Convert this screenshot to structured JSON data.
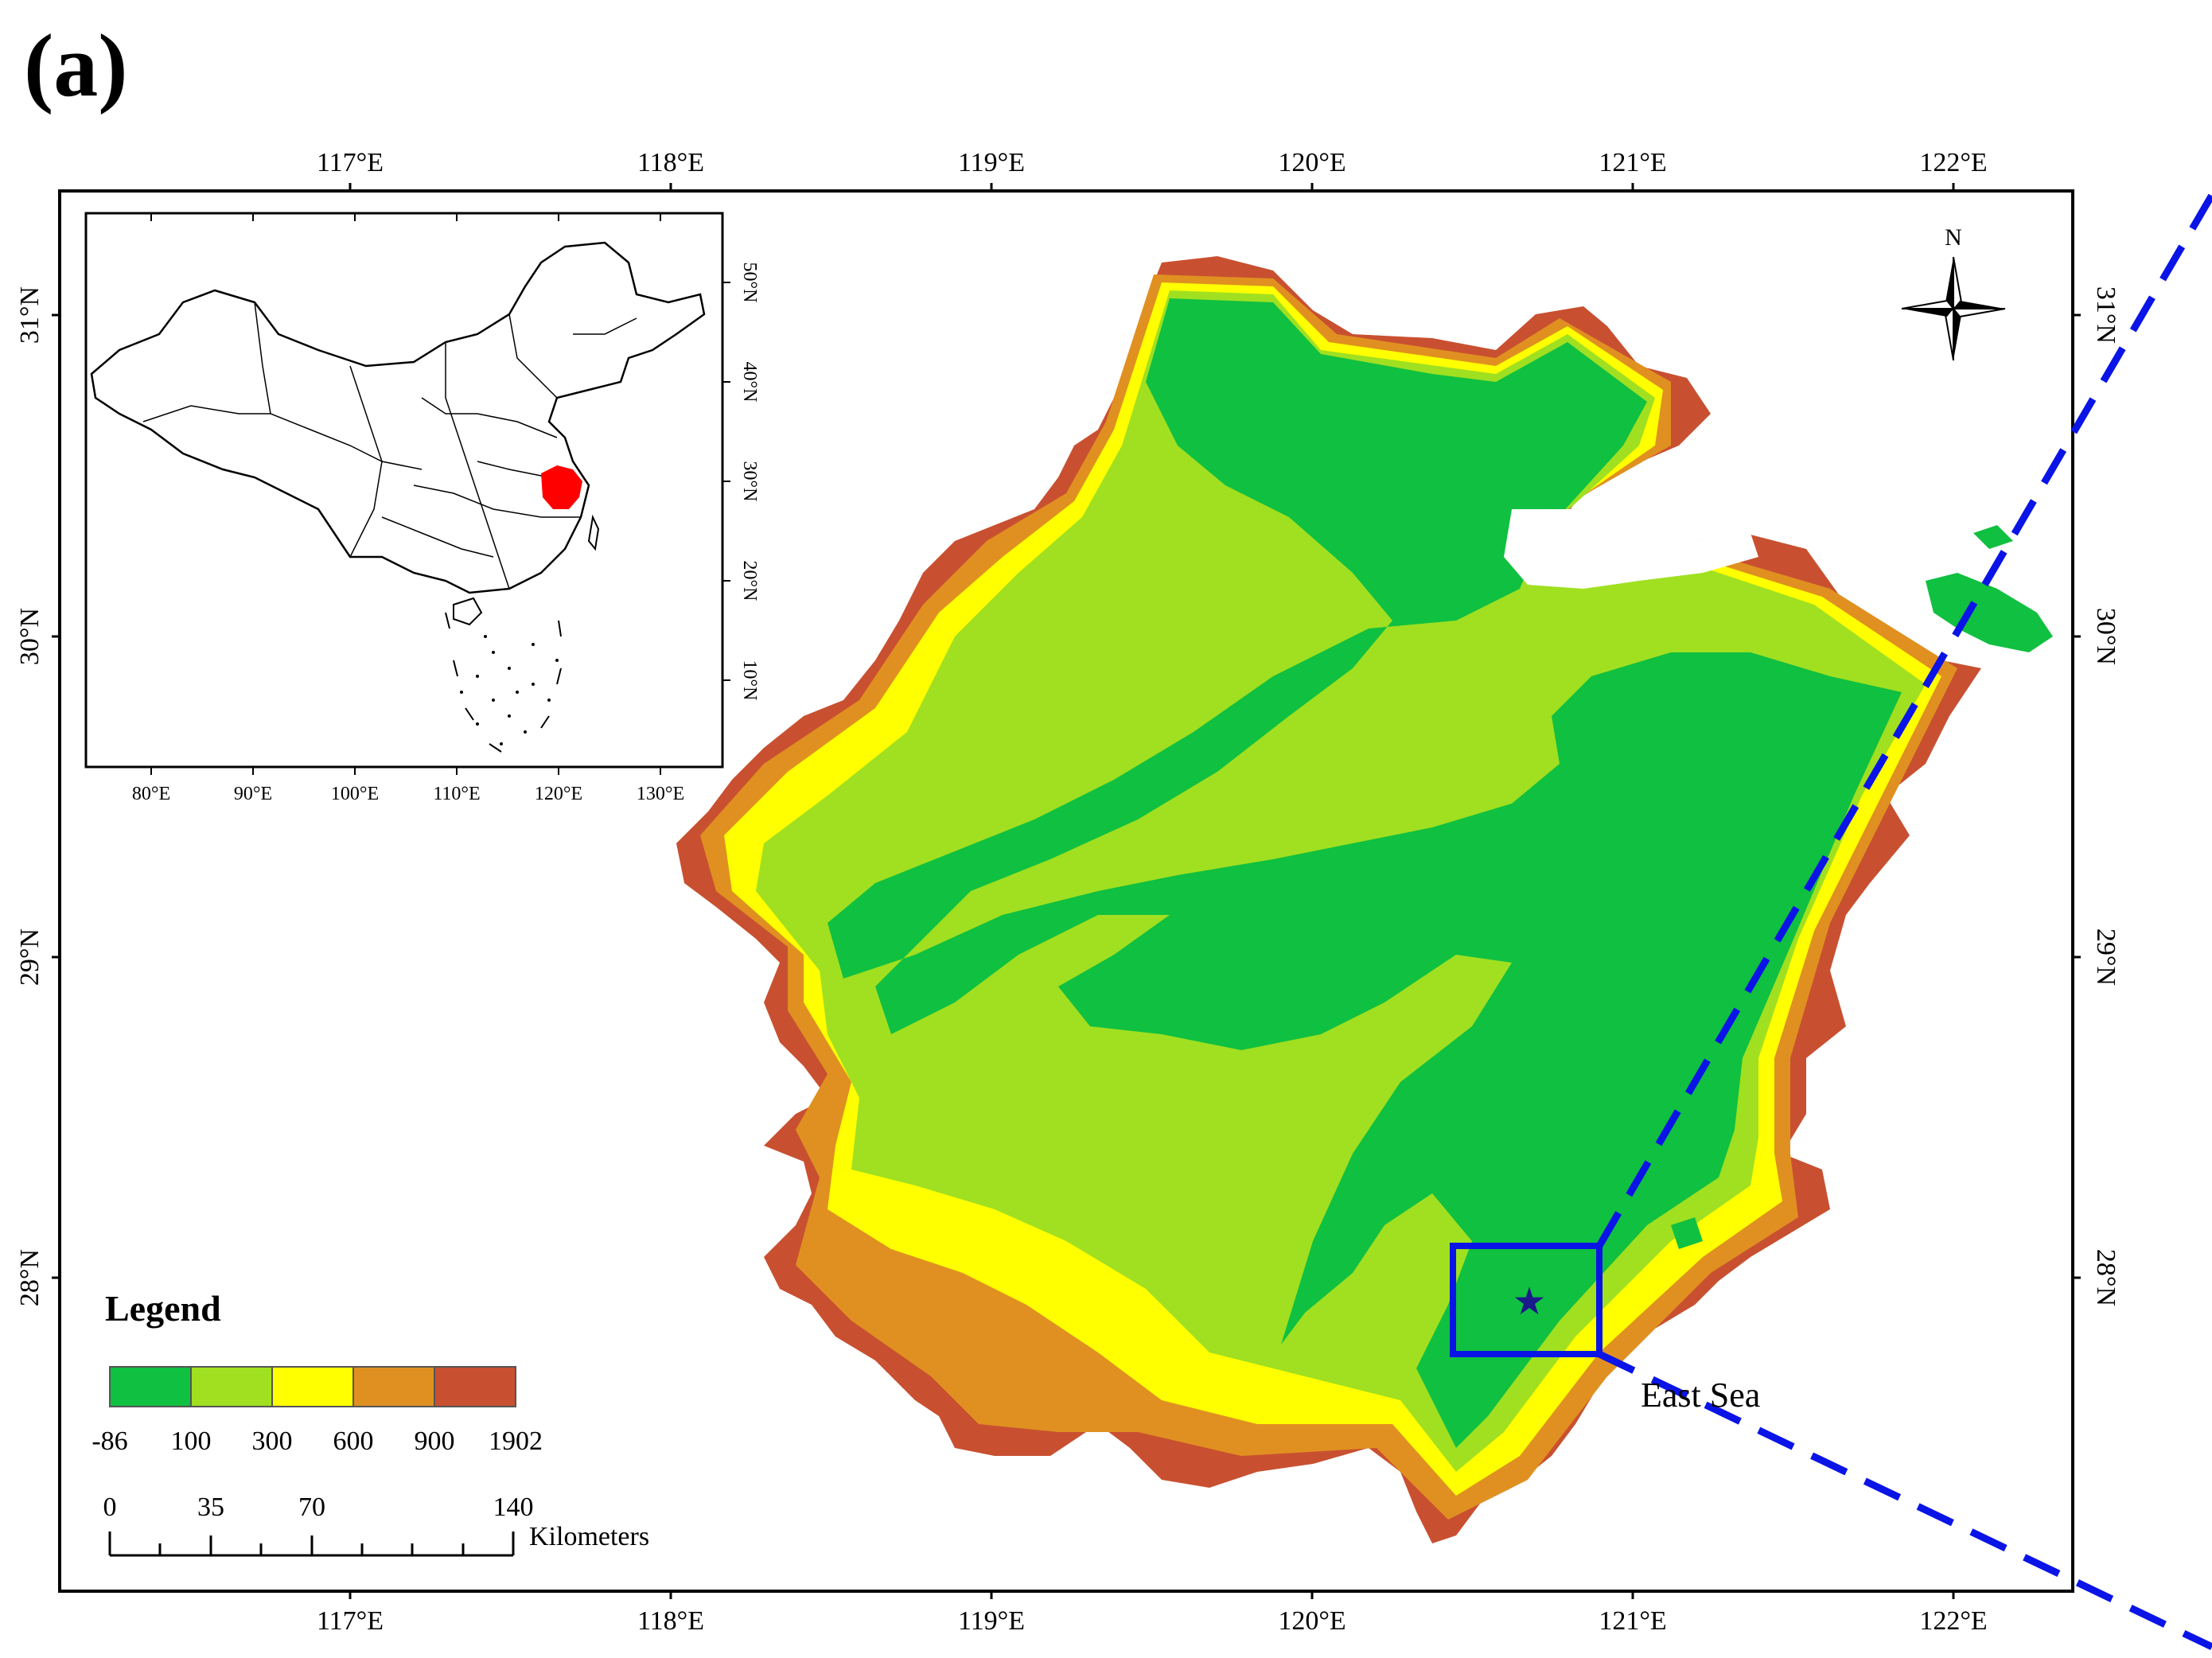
{
  "panel_label": "(a)",
  "main_map": {
    "top_lon_labels": [
      "117°E",
      "118°E",
      "119°E",
      "120°E",
      "121°E",
      "122°E"
    ],
    "bottom_lon_labels": [
      "117°E",
      "118°E",
      "119°E",
      "120°E",
      "121°E",
      "122°E"
    ],
    "left_lat_labels": [
      "31°N",
      "30°N",
      "29°N",
      "28°N"
    ],
    "right_lat_labels": [
      "31°N",
      "30°N",
      "29°N",
      "28°N"
    ],
    "north_arrow_label": "N",
    "sea_label": "East Sea"
  },
  "inset_map": {
    "lon_labels": [
      "80°E",
      "90°E",
      "100°E",
      "110°E",
      "120°E",
      "130°E"
    ],
    "lat_labels": [
      "50°N",
      "40°N",
      "30°N",
      "20°N",
      "10°N"
    ],
    "highlight_color": "#ff0000"
  },
  "legend": {
    "title": "Legend",
    "break_labels": [
      "-86",
      "100",
      "300",
      "600",
      "900",
      "1902"
    ],
    "colors": [
      "#10c040",
      "#a0e020",
      "#ffff00",
      "#e09020",
      "#c85030"
    ]
  },
  "scale_bar": {
    "labels": [
      "0",
      "35",
      "70",
      "140"
    ],
    "unit": "Kilometers"
  },
  "study_area_box_color": "#0a14e6"
}
